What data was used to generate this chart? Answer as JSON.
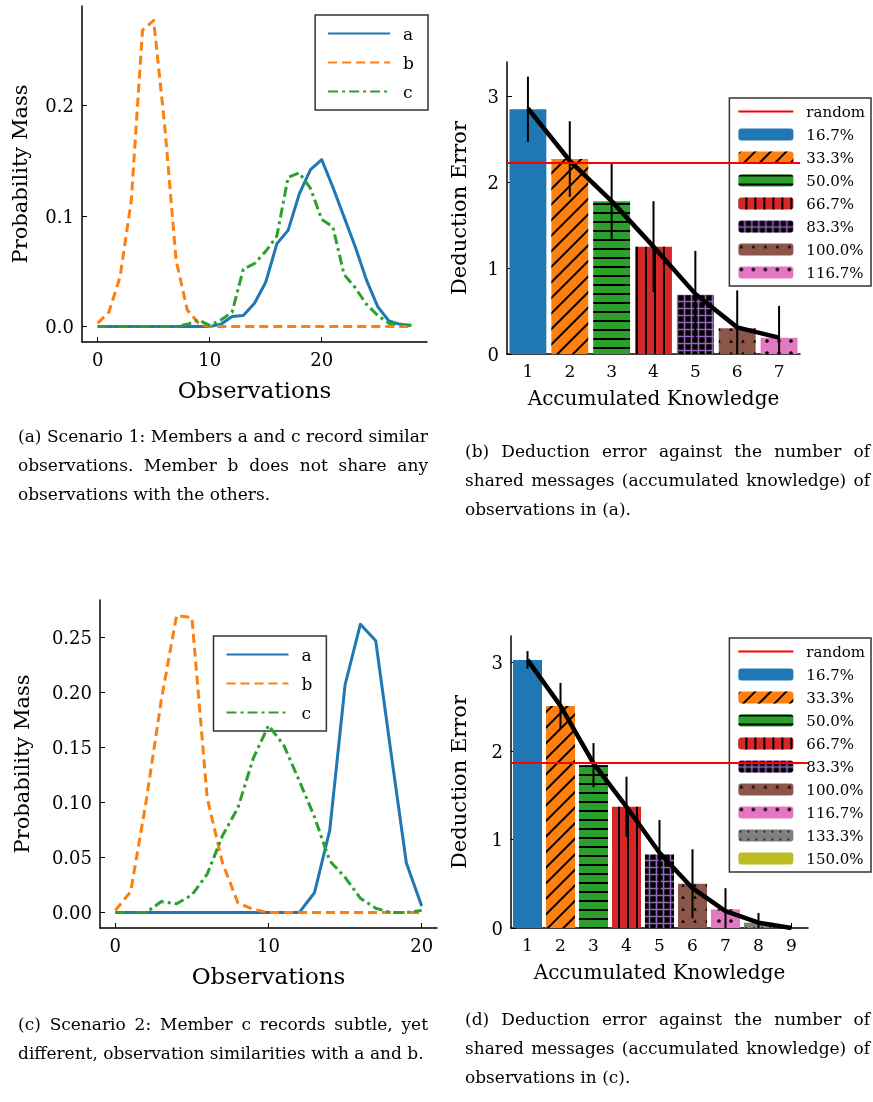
{
  "chart_data": [
    {
      "type": "line",
      "xlabel": "Observations",
      "ylabel": "Probability Mass",
      "x": [
        0,
        1,
        2,
        3,
        4,
        5,
        6,
        7,
        8,
        9,
        10,
        11,
        12,
        13,
        14,
        15,
        16,
        17,
        18,
        19,
        20,
        21,
        22,
        23,
        24,
        25,
        26,
        27,
        28
      ],
      "xlim": [
        -1.4,
        29.4
      ],
      "ylim": [
        -0.014,
        0.29
      ],
      "xticks": [
        0,
        10,
        20
      ],
      "yticks": [
        {
          "value": 0,
          "label": "0.0"
        },
        0.1,
        0.2
      ],
      "legend": "top right",
      "marker": "none",
      "annotations": [
        "(a) Scenario 1: Members a and c record similar observations. Member b does not share any observations with the others."
      ],
      "series": [
        {
          "name": "a",
          "color": "#1f77b4",
          "line_style": "solid",
          "values": [
            0,
            0,
            0,
            0,
            0,
            0,
            0,
            0,
            0,
            0,
            0,
            0.002,
            0.009,
            0.01,
            0.021,
            0.04,
            0.075,
            0.087,
            0.12,
            0.142,
            0.151,
            0.126,
            0.099,
            0.072,
            0.042,
            0.018,
            0.005,
            0.002,
            0.001
          ]
        },
        {
          "name": "b",
          "color": "#ff7f0e",
          "line_style": "dashed",
          "values": [
            0.003,
            0.013,
            0.045,
            0.114,
            0.268,
            0.277,
            0.18,
            0.06,
            0.015,
            0.003,
            0,
            0,
            0,
            0,
            0,
            0,
            0,
            0,
            0,
            0,
            0,
            0,
            0,
            0,
            0,
            0,
            0,
            0,
            0
          ]
        },
        {
          "name": "c",
          "color": "#2ca02c",
          "line_style": "dashdot",
          "values": [
            0,
            0,
            0,
            0,
            0,
            0,
            0,
            0,
            0.002,
            0.006,
            0.001,
            0.006,
            0.013,
            0.052,
            0.057,
            0.068,
            0.082,
            0.135,
            0.139,
            0.125,
            0.097,
            0.09,
            0.047,
            0.035,
            0.02,
            0.01,
            0.003,
            0.002,
            0.001
          ]
        }
      ]
    },
    {
      "type": "bar",
      "xlabel": "Accumulated Knowledge",
      "ylabel": "Deduction Error",
      "categories": [
        "1",
        "2",
        "3",
        "4",
        "5",
        "6",
        "7"
      ],
      "ylim": [
        0,
        3.4
      ],
      "yticks": [
        0,
        1,
        2,
        3
      ],
      "legend": "top right",
      "annotations": [
        "(b) Deduction error against the number of shared messages (accumulated knowledge) of observations in (a)."
      ],
      "ref_lines": [
        {
          "axis": "y",
          "value": 2.23,
          "label": "random",
          "color": "#ff0000"
        }
      ],
      "series": [
        {
          "name": "16.7%",
          "color": "#1f77b4",
          "values": [
            2.85,
            null,
            null,
            null,
            null,
            null,
            null
          ],
          "errors": [
            0.38,
            null,
            null,
            null,
            null,
            null,
            null
          ]
        },
        {
          "name": "33.3%",
          "color": "#ff7f0e",
          "values": [
            null,
            2.27,
            null,
            null,
            null,
            null,
            null
          ],
          "errors": [
            null,
            0.44,
            null,
            null,
            null,
            null,
            null
          ]
        },
        {
          "name": "50.0%",
          "color": "#2ca02c",
          "values": [
            null,
            null,
            1.78,
            null,
            null,
            null,
            null
          ],
          "errors": [
            null,
            null,
            0.44,
            null,
            null,
            null,
            null
          ]
        },
        {
          "name": "66.7%",
          "color": "#d62728",
          "values": [
            null,
            null,
            null,
            1.25,
            null,
            null,
            null
          ],
          "errors": [
            null,
            null,
            null,
            0.53,
            null,
            null,
            null
          ]
        },
        {
          "name": "83.3%",
          "color": "#9467bd",
          "values": [
            null,
            null,
            null,
            null,
            0.69,
            null,
            null
          ],
          "errors": [
            null,
            null,
            null,
            null,
            0.51,
            null,
            null
          ]
        },
        {
          "name": "100.0%",
          "color": "#8c564b",
          "values": [
            null,
            null,
            null,
            null,
            null,
            0.3,
            null
          ],
          "errors": [
            null,
            null,
            null,
            null,
            null,
            [
              0,
              0.74
            ],
            null
          ]
        },
        {
          "name": "116.7%",
          "color": "#e377c2",
          "values": [
            null,
            null,
            null,
            null,
            null,
            null,
            0.19
          ],
          "errors": [
            null,
            null,
            null,
            null,
            null,
            null,
            [
              0,
              0.56
            ]
          ]
        },
        {
          "type": "line",
          "color": "#000000",
          "line_style": "solid",
          "marker": "none",
          "values": [
            2.86,
            2.25,
            1.78,
            1.25,
            0.7,
            0.31,
            0.19
          ]
        }
      ]
    },
    {
      "type": "line",
      "xlabel": "Observations",
      "ylabel": "Probability Mass",
      "x": [
        0,
        1,
        2,
        3,
        4,
        5,
        6,
        7,
        8,
        9,
        10,
        11,
        12,
        13,
        14,
        15,
        16,
        17,
        18,
        19,
        20
      ],
      "xlim": [
        -1,
        21
      ],
      "ylim": [
        -0.014,
        0.284
      ],
      "xticks": [
        0,
        10,
        20
      ],
      "yticks": [
        {
          "value": 0,
          "label": "0.00"
        },
        {
          "value": 0.05,
          "label": "0.05"
        },
        {
          "value": 0.1,
          "label": "0.10"
        },
        {
          "value": 0.15,
          "label": "0.15"
        },
        {
          "value": 0.2,
          "label": "0.20"
        },
        {
          "value": 0.25,
          "label": "0.25"
        }
      ],
      "legend": "top",
      "marker": "none",
      "annotations": [
        "(c) Scenario 2: Member c records subtle, yet different, observation similarities with a and b."
      ],
      "series": [
        {
          "name": "a",
          "color": "#1f77b4",
          "line_style": "solid",
          "values": [
            0,
            0,
            0,
            0,
            0,
            0,
            0,
            0,
            0,
            0,
            0,
            0,
            0,
            0.018,
            0.075,
            0.207,
            0.262,
            0.247,
            0.145,
            0.045,
            0.006
          ]
        },
        {
          "name": "b",
          "color": "#ff7f0e",
          "line_style": "dashed",
          "values": [
            0.002,
            0.019,
            0.1,
            0.193,
            0.27,
            0.268,
            0.104,
            0.045,
            0.009,
            0.003,
            0,
            0,
            0,
            0,
            0,
            0,
            0,
            0,
            0,
            0,
            0
          ]
        },
        {
          "name": "c",
          "color": "#2ca02c",
          "line_style": "dashdot",
          "values": [
            0,
            0,
            0,
            0.01,
            0.008,
            0.016,
            0.035,
            0.07,
            0.095,
            0.14,
            0.17,
            0.152,
            0.12,
            0.087,
            0.047,
            0.032,
            0.013,
            0.004,
            0,
            0,
            0.002
          ]
        }
      ]
    },
    {
      "type": "bar",
      "xlabel": "Accumulated Knowledge",
      "ylabel": "Deduction Error",
      "categories": [
        "1",
        "2",
        "3",
        "4",
        "5",
        "6",
        "7",
        "8",
        "9"
      ],
      "ylim": [
        0,
        3.3
      ],
      "yticks": [
        0,
        1,
        2,
        3
      ],
      "legend": "top right",
      "annotations": [
        "(d) Deduction error against the number of shared messages (accumulated knowledge) of observations in (c)."
      ],
      "ref_lines": [
        {
          "axis": "y",
          "value": 1.87,
          "label": "random",
          "color": "#ff0000"
        }
      ],
      "series": [
        {
          "name": "16.7%",
          "color": "#1f77b4",
          "values": [
            3.03,
            null,
            null,
            null,
            null,
            null,
            null,
            null,
            null
          ],
          "errors": [
            0.1,
            null,
            null,
            null,
            null,
            null,
            null,
            null,
            null
          ]
        },
        {
          "name": "33.3%",
          "color": "#ff7f0e",
          "values": [
            null,
            2.51,
            null,
            null,
            null,
            null,
            null,
            null,
            null
          ],
          "errors": [
            null,
            0.26,
            null,
            null,
            null,
            null,
            null,
            null,
            null
          ]
        },
        {
          "name": "50.0%",
          "color": "#2ca02c",
          "values": [
            null,
            null,
            1.84,
            null,
            null,
            null,
            null,
            null,
            null
          ],
          "errors": [
            null,
            null,
            0.25,
            null,
            null,
            null,
            null,
            null,
            null
          ]
        },
        {
          "name": "66.7%",
          "color": "#d62728",
          "values": [
            null,
            null,
            null,
            1.37,
            null,
            null,
            null,
            null,
            null
          ],
          "errors": [
            null,
            null,
            null,
            0.34,
            null,
            null,
            null,
            null,
            null
          ]
        },
        {
          "name": "83.3%",
          "color": "#9467bd",
          "values": [
            null,
            null,
            null,
            null,
            0.83,
            null,
            null,
            null,
            null
          ],
          "errors": [
            null,
            null,
            null,
            null,
            0.39,
            null,
            null,
            null,
            null
          ]
        },
        {
          "name": "100.0%",
          "color": "#8c564b",
          "values": [
            null,
            null,
            null,
            null,
            null,
            0.5,
            null,
            null,
            null
          ],
          "errors": [
            null,
            null,
            null,
            null,
            null,
            0.39,
            null,
            null,
            null
          ]
        },
        {
          "name": "116.7%",
          "color": "#e377c2",
          "values": [
            null,
            null,
            null,
            null,
            null,
            null,
            0.21,
            null,
            null
          ],
          "errors": [
            null,
            null,
            null,
            null,
            null,
            null,
            [
              0,
              0.45
            ],
            null,
            null
          ]
        },
        {
          "name": "133.3%",
          "color": "#7f7f7f",
          "values": [
            null,
            null,
            null,
            null,
            null,
            null,
            null,
            0.06,
            null
          ],
          "errors": [
            null,
            null,
            null,
            null,
            null,
            null,
            null,
            [
              0,
              0.17
            ],
            null
          ]
        },
        {
          "name": "150.0%",
          "color": "#bcbd22",
          "values": [
            null,
            null,
            null,
            null,
            null,
            null,
            null,
            null,
            null
          ]
        },
        {
          "type": "line",
          "color": "#000000",
          "line_style": "solid",
          "marker": "none",
          "values": [
            3.03,
            2.51,
            1.86,
            1.37,
            0.85,
            0.45,
            0.19,
            0.06,
            0
          ]
        }
      ]
    }
  ]
}
